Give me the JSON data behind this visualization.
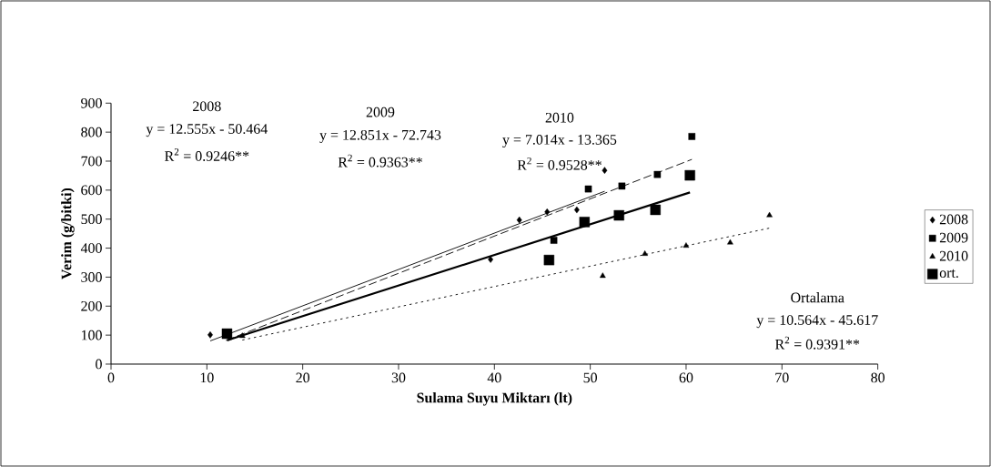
{
  "chart_data": {
    "type": "scatter",
    "xlabel": "Sulama Suyu Miktarı (lt)",
    "ylabel": "Verim (g/bitki)",
    "xlim": [
      0,
      80
    ],
    "ylim": [
      0,
      900
    ],
    "xticks": [
      0,
      10,
      20,
      30,
      40,
      50,
      60,
      70,
      80
    ],
    "yticks": [
      0,
      100,
      200,
      300,
      400,
      500,
      600,
      700,
      800,
      900
    ],
    "grid": false,
    "legend": "right",
    "series": [
      {
        "name": "2008",
        "marker": "diamond",
        "color": "#000000",
        "x": [
          10.35,
          39.6,
          42.6,
          45.5,
          48.6,
          51.5
        ],
        "values": [
          101,
          361,
          497,
          525,
          532,
          668
        ]
      },
      {
        "name": "2009",
        "marker": "square",
        "color": "#000000",
        "x": [
          46.2,
          49.8,
          53.3,
          57.0,
          60.6
        ],
        "values": [
          427,
          604,
          614,
          654,
          785
        ]
      },
      {
        "name": "2010",
        "marker": "triangle",
        "color": "#000000",
        "x": [
          13.7,
          51.3,
          55.7,
          60.0,
          64.6,
          68.7
        ],
        "values": [
          97,
          304,
          380,
          408,
          419,
          513
        ]
      },
      {
        "name": "ort.",
        "marker": "square",
        "color": "#000000",
        "x": [
          12.1,
          45.7,
          49.4,
          53.0,
          56.8,
          60.4
        ],
        "values": [
          105,
          359,
          490,
          513,
          532,
          651
        ]
      },
      {
        "type": "line",
        "line_style": "solid",
        "marker": "none",
        "color": "#000000",
        "x": [
          10.35,
          51.5
        ],
        "values": [
          80,
          596
        ]
      },
      {
        "type": "line",
        "line_style": "dashed",
        "marker": "none",
        "color": "#000000",
        "x": [
          12,
          60.6
        ],
        "values": [
          82,
          706
        ]
      },
      {
        "type": "line",
        "line_style": "dotted",
        "marker": "none",
        "color": "#000000",
        "x": [
          13.7,
          68.7
        ],
        "values": [
          83,
          469
        ]
      },
      {
        "type": "line",
        "line_style": "solid",
        "marker": "none",
        "color": "#000000",
        "x": [
          12.1,
          60.4
        ],
        "values": [
          82,
          592
        ]
      }
    ],
    "annotations": [
      "2008",
      "y = 12.555x - 50.464",
      "R$^{2}$ = 0.9246**",
      "2009",
      "y = 12.851x - 72.743",
      "R$^{2}$ = 0.9363**",
      "2010",
      "y = 7.014x - 13.365",
      "R$^{2}$ = 0.9528**",
      "Ortalama",
      "y = 10.564x - 45.617",
      "R$^{2}$ = 0.9391**"
    ]
  }
}
